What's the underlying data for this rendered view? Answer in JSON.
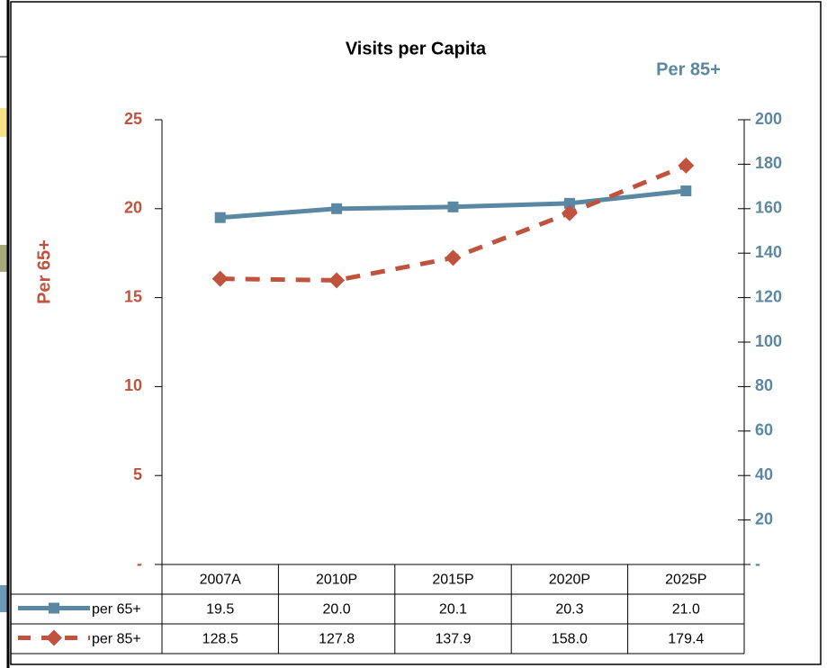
{
  "chart_data": {
    "type": "line",
    "title": "Visits per Capita",
    "ylabel": "Per 65+",
    "y2label": "Per 85+",
    "categories": [
      "2007A",
      "2010P",
      "2015P",
      "2020P",
      "2025P"
    ],
    "series": [
      {
        "name": "per 65+",
        "color": "#5a87a2",
        "values": [
          19.5,
          20.0,
          20.1,
          20.3,
          21.0
        ],
        "value_labels": [
          "19.5",
          "20.0",
          "20.1",
          "20.3",
          "21.0"
        ],
        "axis": "y"
      },
      {
        "name": "per 85+",
        "color": "#c0533e",
        "values": [
          128.5,
          127.8,
          137.9,
          158.0,
          179.4
        ],
        "value_labels": [
          "128.5",
          "127.8",
          "137.9",
          "158.0",
          "179.4"
        ],
        "axis": "y2"
      }
    ],
    "ylim": [
      0,
      25
    ],
    "yticks": [
      {
        "value": 0,
        "label": "-"
      },
      5,
      10,
      15,
      20,
      25
    ],
    "y2lim": [
      0,
      200
    ],
    "y2ticks": [
      {
        "value": 0,
        "label": "-"
      },
      20,
      40,
      60,
      80,
      100,
      120,
      140,
      160,
      180,
      200
    ],
    "grid": false
  }
}
